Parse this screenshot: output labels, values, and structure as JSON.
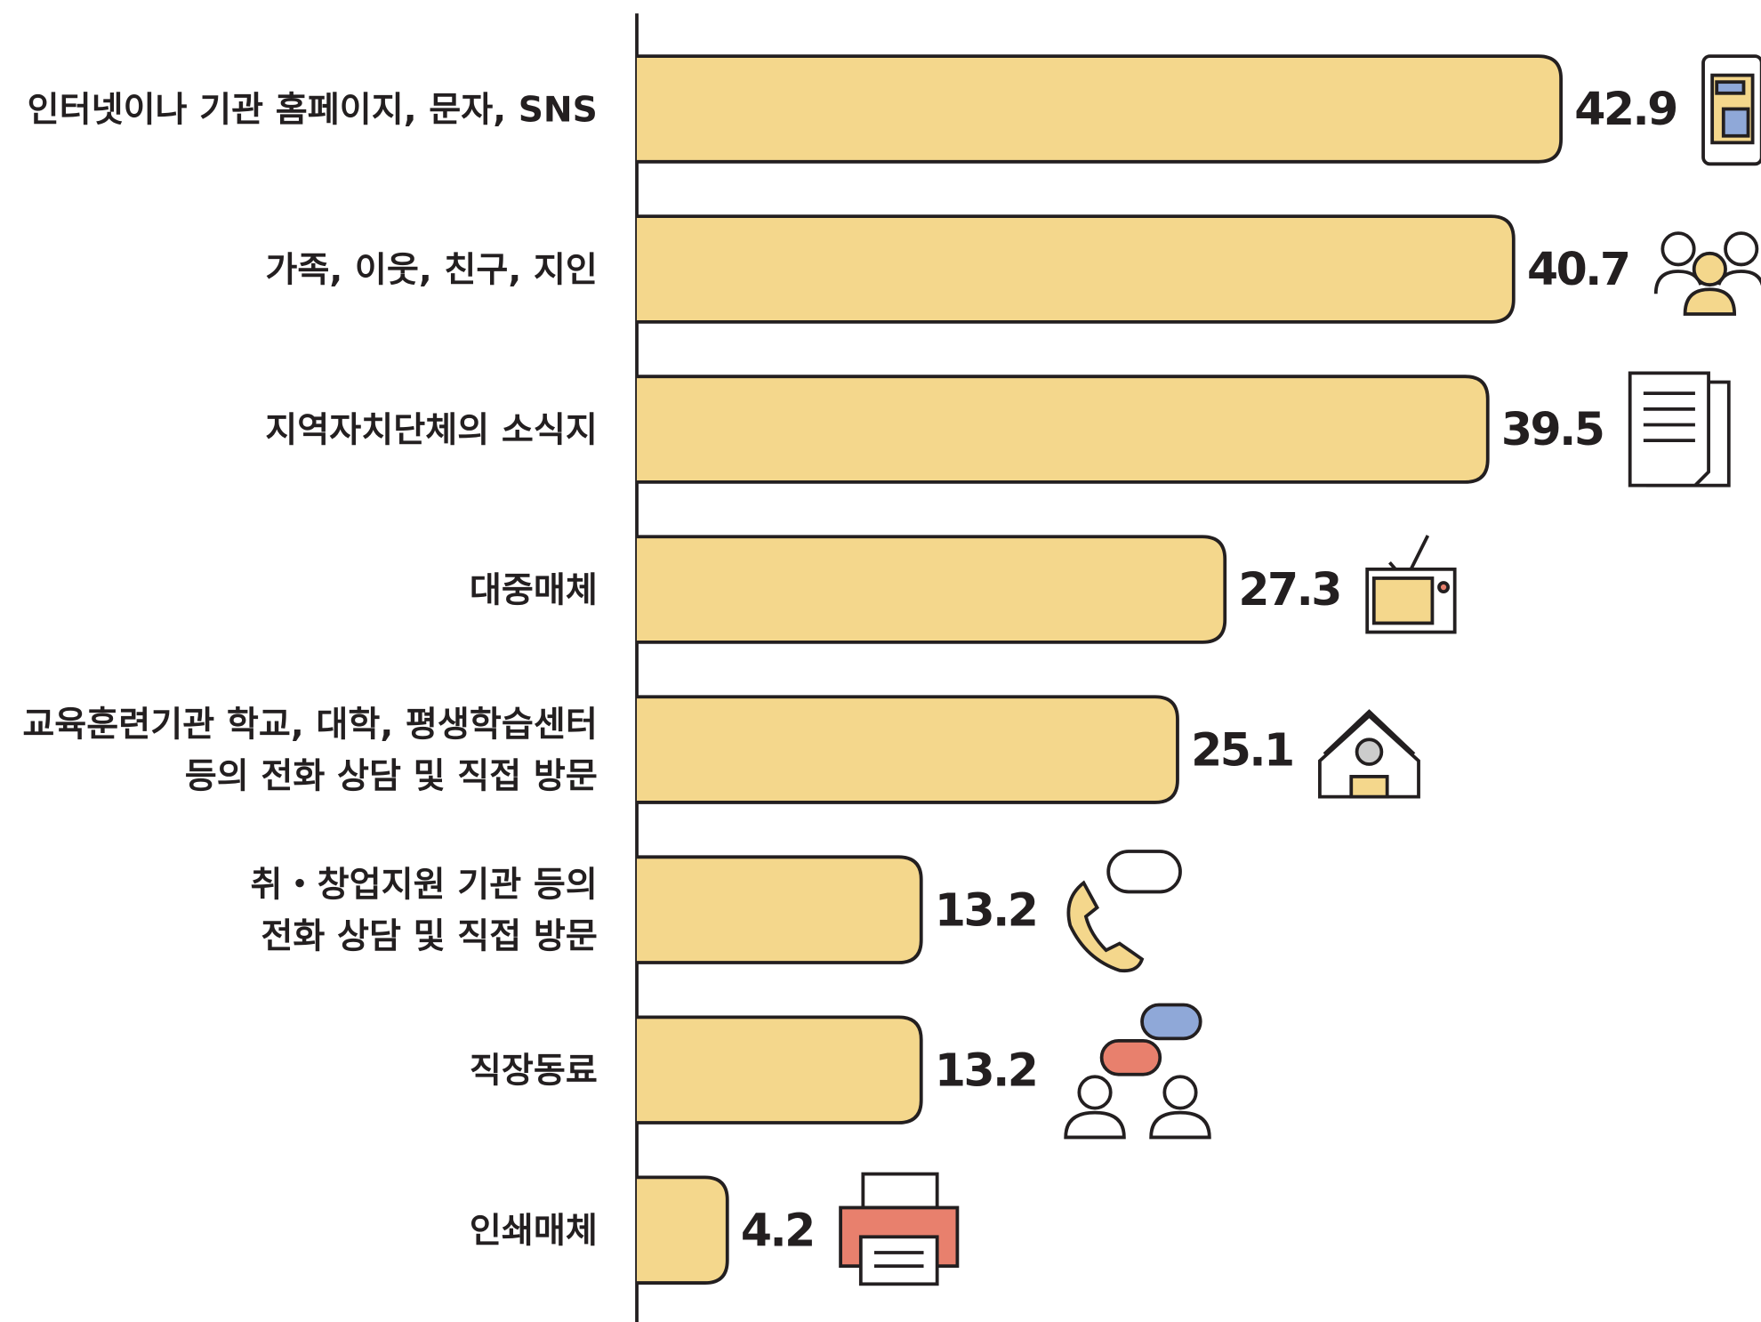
{
  "chart_data": {
    "type": "bar",
    "orientation": "horizontal",
    "categories": [
      [
        "인터넷이나 기관 홈페이지, 문자, SNS"
      ],
      [
        "가족, 이웃, 친구, 지인"
      ],
      [
        "지역자치단체의 소식지"
      ],
      [
        "대중매체"
      ],
      [
        "교육훈련기관 학교, 대학, 평생학습센터",
        "등의 전화 상담 및 직접 방문"
      ],
      [
        "취・창업지원 기관 등의",
        "전화 상담 및 직접 방문"
      ],
      [
        "직장동료"
      ],
      [
        "인쇄매체"
      ]
    ],
    "values": [
      42.9,
      40.7,
      39.5,
      27.3,
      25.1,
      13.2,
      13.2,
      4.2
    ],
    "color": "#f4d78c"
  }
}
